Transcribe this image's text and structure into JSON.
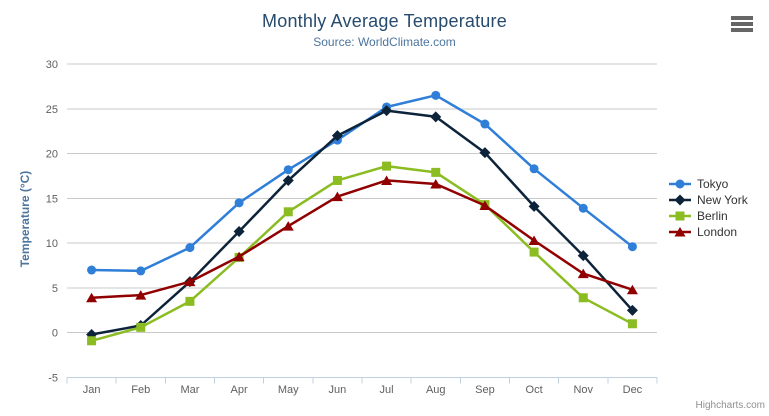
{
  "header": {
    "title": "Monthly Average Temperature",
    "subtitle": "Source: WorldClimate.com"
  },
  "chart_data": {
    "type": "line",
    "categories": [
      "Jan",
      "Feb",
      "Mar",
      "Apr",
      "May",
      "Jun",
      "Jul",
      "Aug",
      "Sep",
      "Oct",
      "Nov",
      "Dec"
    ],
    "series": [
      {
        "name": "Tokyo",
        "color": "#2f7ed8",
        "marker": "circle",
        "values": [
          7.0,
          6.9,
          9.5,
          14.5,
          18.2,
          21.5,
          25.2,
          26.5,
          23.3,
          18.3,
          13.9,
          9.6
        ]
      },
      {
        "name": "New York",
        "color": "#0d233a",
        "marker": "diamond",
        "values": [
          -0.2,
          0.8,
          5.7,
          11.3,
          17.0,
          22.0,
          24.8,
          24.1,
          20.1,
          14.1,
          8.6,
          2.5
        ]
      },
      {
        "name": "Berlin",
        "color": "#8bbc21",
        "marker": "square",
        "values": [
          -0.9,
          0.6,
          3.5,
          8.4,
          13.5,
          17.0,
          18.6,
          17.9,
          14.3,
          9.0,
          3.9,
          1.0
        ]
      },
      {
        "name": "London",
        "color": "#910000",
        "marker": "triangle",
        "values": [
          3.9,
          4.2,
          5.7,
          8.5,
          11.9,
          15.2,
          17.0,
          16.6,
          14.2,
          10.3,
          6.6,
          4.8
        ]
      }
    ],
    "title": "Monthly Average Temperature",
    "subtitle": "Source: WorldClimate.com",
    "xlabel": "",
    "ylabel": "Temperature (°C)",
    "ylim": [
      -5,
      30
    ],
    "ytick_interval": 5,
    "grid": true,
    "legend_position": "right",
    "grid_color": "#c9c9c9",
    "axis_line_color": "#c0d0e0"
  },
  "credits": {
    "label": "Highcharts.com"
  }
}
